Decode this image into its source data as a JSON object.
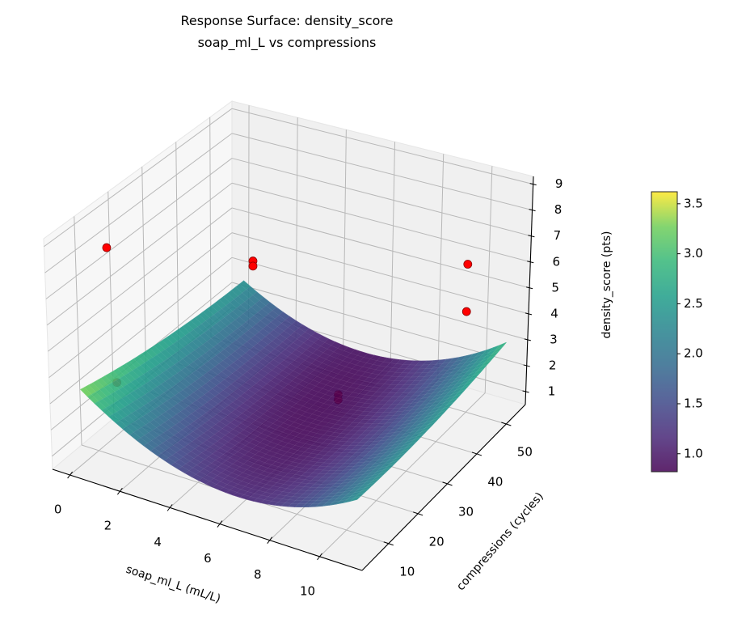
{
  "chart_data": {
    "type": "surface3d",
    "title": [
      "Response Surface: density_score",
      "soap_ml_L vs compressions"
    ],
    "xlabel": "soap_ml_L (mL/L)",
    "ylabel": "compressions (cycles)",
    "zlabel": "density_score (pts)",
    "xlim": [
      -0.7,
      11.7
    ],
    "ylim": [
      1,
      56.5
    ],
    "zlim": [
      0.5,
      9.3
    ],
    "xticks": [
      "0",
      "2",
      "4",
      "6",
      "8",
      "10"
    ],
    "yticks": [
      "10",
      "20",
      "30",
      "40",
      "50"
    ],
    "zticks": [
      "1",
      "2",
      "3",
      "4",
      "5",
      "6",
      "7",
      "8",
      "9"
    ],
    "grid": true,
    "surface": {
      "x_range": [
        0,
        11
      ],
      "y_range": [
        5,
        55
      ],
      "model": {
        "x0": 5.5,
        "y0": 38,
        "z0": 0.85,
        "a_xx": 0.0566,
        "a_yy": 0.00031,
        "a_xy": 0.0025
      },
      "colormap": "viridis",
      "alpha": 0.9
    },
    "points": {
      "color": "#ff0000",
      "data": [
        {
          "x": 0,
          "y": 14,
          "z": 7.9
        },
        {
          "x": 2,
          "y": 43,
          "z": 5.0
        },
        {
          "x": 2,
          "y": 43,
          "z": 4.8
        },
        {
          "x": 11,
          "y": 41,
          "z": 7.4
        },
        {
          "x": 11,
          "y": 41,
          "z": 5.6
        },
        {
          "x": 0,
          "y": 16,
          "z": 2.5
        },
        {
          "x": 5.6,
          "y": 42.6,
          "z": 0.8
        },
        {
          "x": 5.6,
          "y": 42.6,
          "z": 0.6
        }
      ]
    },
    "colorbar": {
      "label": "density_score (pts)",
      "range": [
        0.82,
        3.62
      ],
      "ticks": [
        "1.0",
        "1.5",
        "2.0",
        "2.5",
        "3.0",
        "3.5"
      ]
    }
  }
}
